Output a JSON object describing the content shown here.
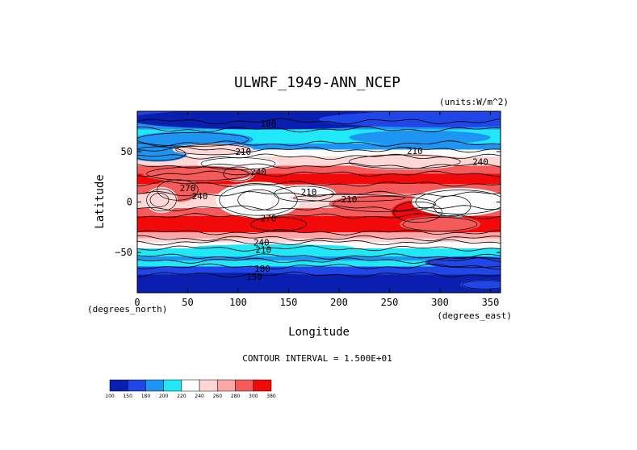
{
  "chart_data": {
    "type": "heatmap",
    "title": "ULWRF_1949-ANN_NCEP",
    "units_label": "(units:W/m^2)",
    "xlabel": "Longitude",
    "ylabel": "Latitude",
    "x_unit_label": "(degrees_east)",
    "y_unit_label": "(degrees_north)",
    "xlim": [
      0,
      360
    ],
    "ylim": [
      -90,
      90
    ],
    "x_ticks": [
      0,
      50,
      100,
      150,
      200,
      250,
      300,
      350
    ],
    "y_ticks": [
      50,
      0,
      -50
    ],
    "y_tick_labels": [
      "50",
      "0",
      "−50"
    ],
    "contour_interval_text": "CONTOUR INTERVAL = 1.500E+01",
    "contour_labels": [
      {
        "text": "180",
        "lon": 130,
        "lat": 78
      },
      {
        "text": "210",
        "lon": 105,
        "lat": 50
      },
      {
        "text": "210",
        "lon": 275,
        "lat": 51
      },
      {
        "text": "240",
        "lon": 120,
        "lat": 30
      },
      {
        "text": "240",
        "lon": 340,
        "lat": 40
      },
      {
        "text": "270",
        "lon": 50,
        "lat": 14
      },
      {
        "text": "240",
        "lon": 62,
        "lat": 6
      },
      {
        "text": "210",
        "lon": 170,
        "lat": 10
      },
      {
        "text": "210",
        "lon": 210,
        "lat": 3
      },
      {
        "text": "270",
        "lon": 130,
        "lat": -16
      },
      {
        "text": "240",
        "lon": 123,
        "lat": -40
      },
      {
        "text": "210",
        "lon": 125,
        "lat": -47
      },
      {
        "text": "180",
        "lon": 124,
        "lat": -66
      },
      {
        "text": "150",
        "lon": 116,
        "lat": -74
      }
    ],
    "colorbar": {
      "levels": [
        "100",
        "150",
        "180",
        "200",
        "220",
        "240",
        "260",
        "280",
        "300",
        "380"
      ],
      "colors": [
        "#0a1fb0",
        "#2046e8",
        "#1e95f2",
        "#20e8f6",
        "#fdfdfd",
        "#ffd7d7",
        "#fca7a7",
        "#f65b5b",
        "#f20a0a"
      ]
    }
  }
}
